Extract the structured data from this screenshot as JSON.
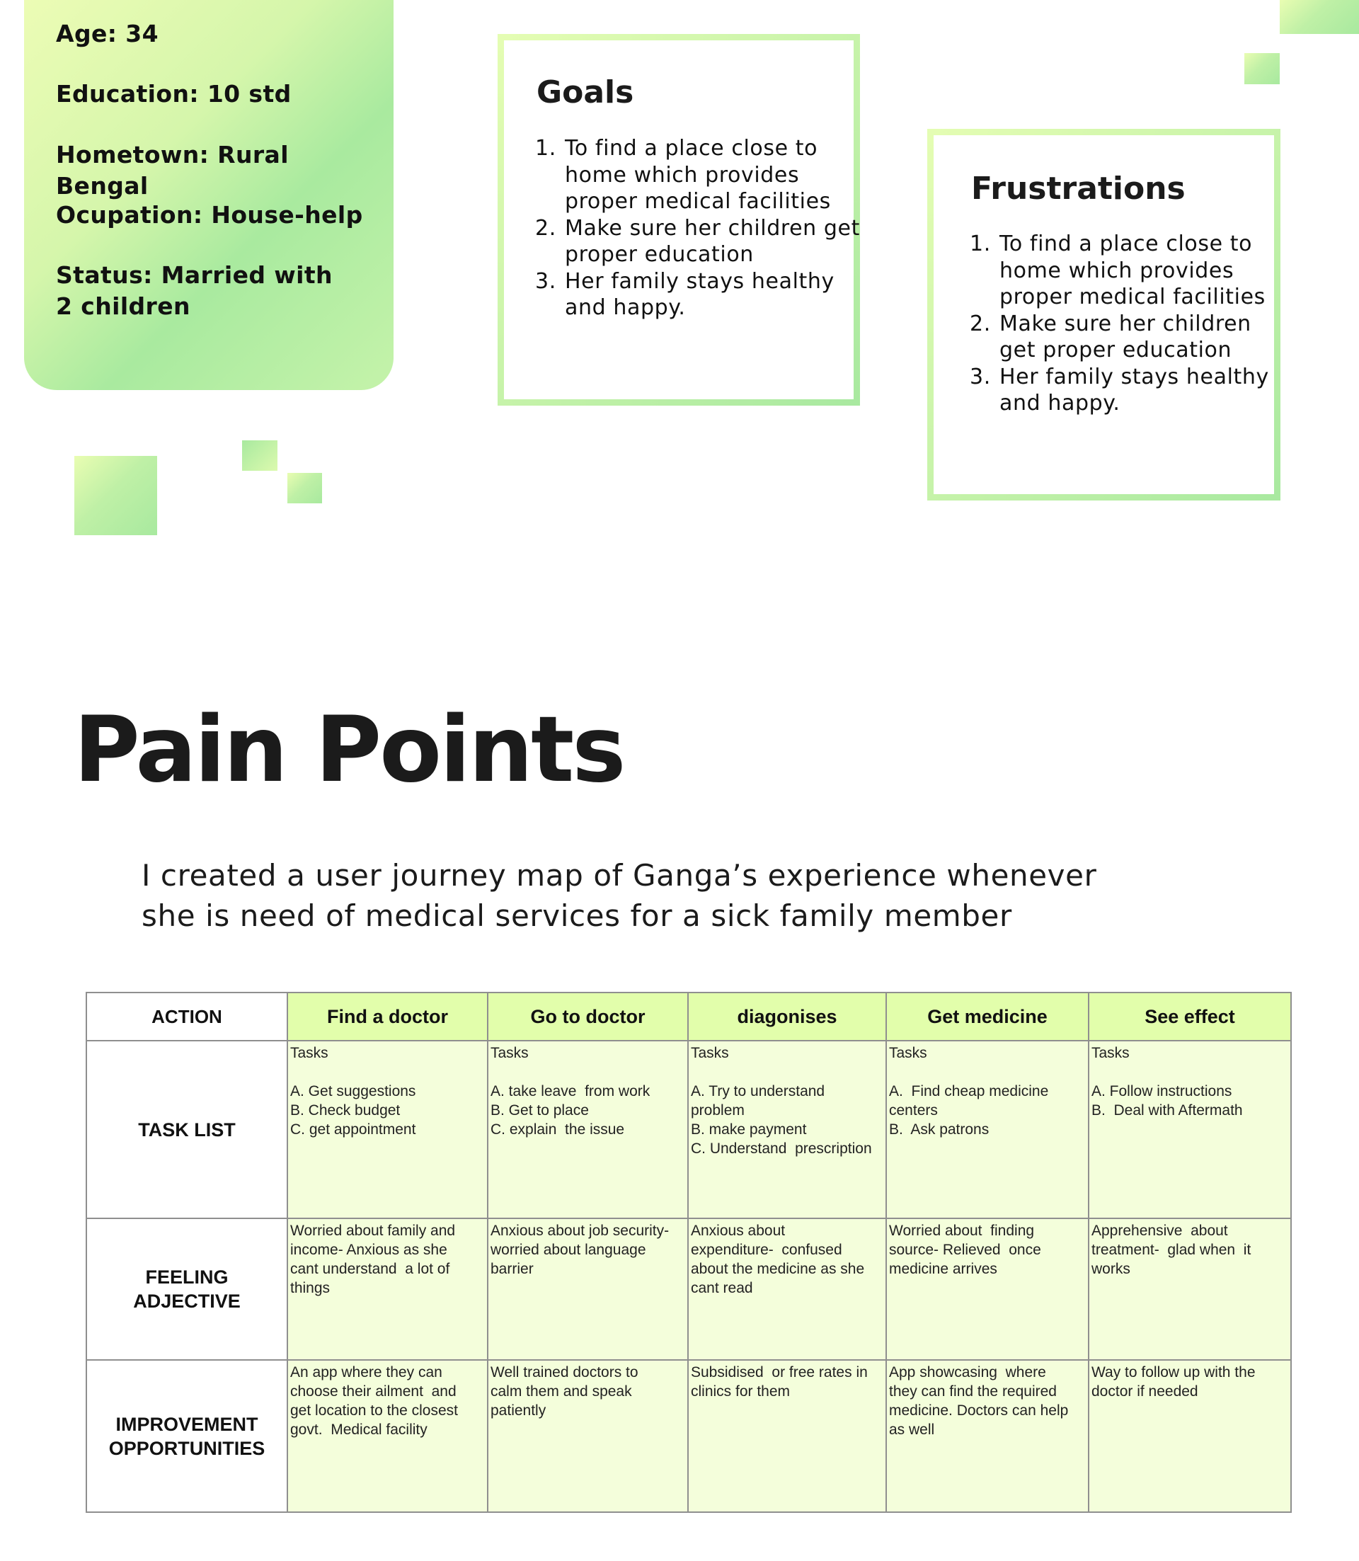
{
  "persona": {
    "age": "Age: 34",
    "education": "Education: 10 std",
    "hometown": "Hometown: Rural Bengal",
    "occupation": "Ocupation: House-help",
    "status": "Status: Married with 2 children"
  },
  "goals": {
    "title": "Goals",
    "items": [
      "To find a place close to home which provides proper medical facilities",
      "Make sure her children get proper education",
      "Her family stays healthy and happy."
    ]
  },
  "frustrations": {
    "title": "Frustrations",
    "items": [
      "To find a place close to home which provides proper medical facilities",
      "Make sure her children get proper education",
      "Her family stays healthy and happy."
    ]
  },
  "pain_points": {
    "title": "Pain Points",
    "intro_line1": "I created a user journey map of Ganga’s experience whenever",
    "intro_line2": "she is need of medical services for a sick family member"
  },
  "journey": {
    "action_header": "ACTION",
    "stages": [
      "Find a doctor",
      "Go to doctor",
      "diagonises",
      "Get medicine",
      "See effect"
    ],
    "row_labels": {
      "tasks": "TASK LIST",
      "feeling_line1": "FEELING",
      "feeling_line2": "ADJECTIVE",
      "improvement_line1": "IMPROVEMENT",
      "improvement_line2": "OPPORTUNITIES"
    },
    "tasks_heading": "Tasks",
    "tasks": [
      [
        "A. Get suggestions",
        "B. Check budget",
        "C. get appointment"
      ],
      [
        "A. take leave  from work",
        "B. Get to place",
        "C. explain  the issue"
      ],
      [
        "A. Try to understand",
        "problem",
        "B. make payment",
        "C. Understand  prescription"
      ],
      [
        "A.  Find cheap medicine",
        "centers",
        "B.  Ask patrons"
      ],
      [
        "A. Follow instructions",
        "B.  Deal with Aftermath"
      ]
    ],
    "feelings": [
      [
        "Worried about family and",
        "income- Anxious as she",
        "cant understand  a lot of",
        "things"
      ],
      [
        "Anxious about job security-",
        "worried about language",
        "barrier"
      ],
      [
        "Anxious about",
        "expenditure-  confused",
        "about the medicine as she",
        "cant read"
      ],
      [
        "Worried about  finding",
        "source- Relieved  once",
        "medicine arrives"
      ],
      [
        "Apprehensive  about",
        "treatment-  glad when  it",
        "works"
      ]
    ],
    "improvements": [
      [
        "An app where they can",
        "choose their ailment  and",
        "get location to the closest",
        "govt.  Medical facility"
      ],
      [
        "Well trained doctors to",
        "calm them and speak",
        "patiently"
      ],
      [
        "Subsidised  or free rates in",
        "clinics for them"
      ],
      [
        "App showcasing  where",
        "they can find the required",
        "medicine. Doctors can help",
        "as well"
      ],
      [
        "Way to follow up with the",
        "doctor if needed"
      ]
    ]
  }
}
